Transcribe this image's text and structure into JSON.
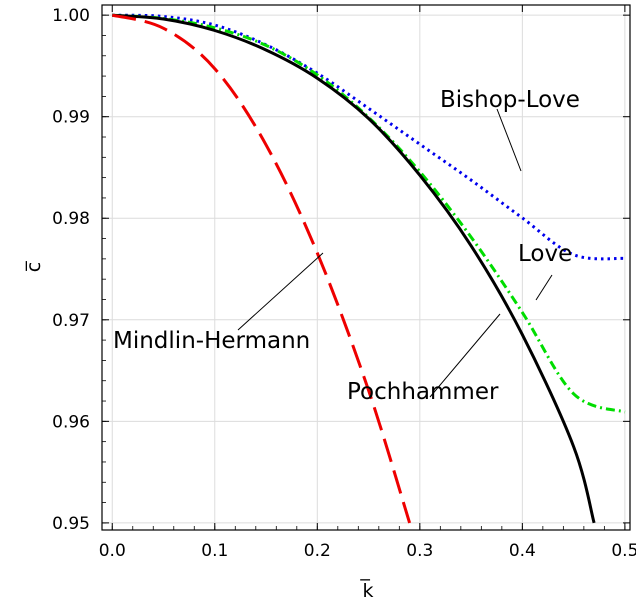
{
  "chart_data": {
    "type": "line",
    "xlabel": "k̅",
    "ylabel": "c̅",
    "xlim": [
      -0.01,
      0.505
    ],
    "ylim": [
      0.9493,
      1.001
    ],
    "x_ticks": [
      0.0,
      0.1,
      0.2,
      0.3,
      0.4,
      0.5
    ],
    "x_tick_labels": [
      "0.0",
      "0.1",
      "0.2",
      "0.3",
      "0.4",
      "0.5"
    ],
    "y_ticks": [
      0.95,
      0.96,
      0.97,
      0.98,
      0.99,
      1.0
    ],
    "y_tick_labels": [
      "0.95",
      "0.96",
      "0.97",
      "0.98",
      "0.99",
      "1.00"
    ],
    "grid": true,
    "series": [
      {
        "name": "Bishop-Love",
        "color": "#0000ee",
        "style": "dotted",
        "x": [
          0.0,
          0.05,
          0.1,
          0.15,
          0.2,
          0.25,
          0.3,
          0.35,
          0.4,
          0.45,
          0.5
        ],
        "y": [
          1.0,
          0.99987,
          0.99902,
          0.99708,
          0.99428,
          0.99082,
          0.98729,
          0.98376,
          0.98003,
          0.97641,
          0.97604
        ]
      },
      {
        "name": "Love",
        "color": "#00dd00",
        "style": "dashdot",
        "x": [
          0.0,
          0.05,
          0.1,
          0.15,
          0.2,
          0.25,
          0.3,
          0.35,
          0.4,
          0.45,
          0.5
        ],
        "y": [
          1.0,
          0.99967,
          0.99875,
          0.99702,
          0.99412,
          0.98993,
          0.98459,
          0.97814,
          0.97073,
          0.96271,
          0.96091
        ]
      },
      {
        "name": "Pochhammer",
        "color": "#000000",
        "style": "solid",
        "x": [
          0.0,
          0.05,
          0.1,
          0.15,
          0.2,
          0.25,
          0.3,
          0.35,
          0.4,
          0.45,
          0.47
        ],
        "y": [
          1.0,
          0.99962,
          0.99849,
          0.99657,
          0.99379,
          0.98982,
          0.98424,
          0.97729,
          0.96854,
          0.95751,
          0.95
        ]
      },
      {
        "name": "Mindlin-Hermann",
        "color": "#ee0000",
        "style": "dashed",
        "x": [
          0.0,
          0.05,
          0.1,
          0.15,
          0.2,
          0.25,
          0.29
        ],
        "y": [
          1.0,
          0.99871,
          0.99473,
          0.98723,
          0.97658,
          0.96305,
          0.95
        ]
      }
    ],
    "labels": [
      {
        "text": "Bishop-Love",
        "series": "Bishop-Love"
      },
      {
        "text": "Love",
        "series": "Love"
      },
      {
        "text": "Pochhammer",
        "series": "Pochhammer"
      },
      {
        "text": "Mindlin-Hermann",
        "series": "Mindlin-Hermann"
      }
    ]
  }
}
